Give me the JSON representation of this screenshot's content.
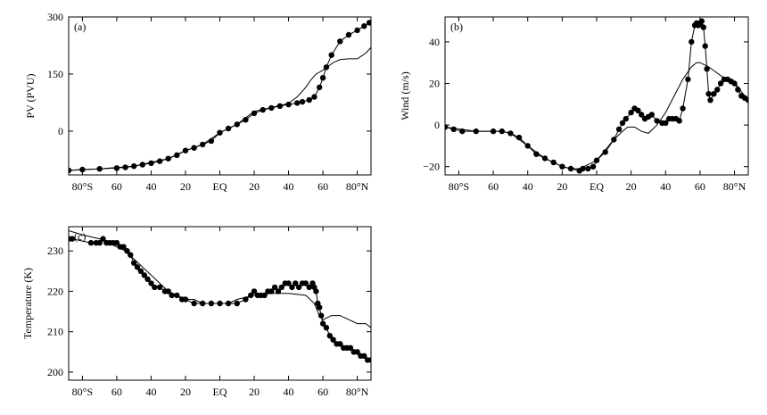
{
  "figure": {
    "background": "#ffffff",
    "ink": "#000000"
  },
  "chart_data": [
    {
      "type": "line",
      "panel_label": "(a)",
      "ylabel": "PV (PVU)",
      "xlabel": "",
      "x_ticks": [
        {
          "value": -80,
          "label": "80°S"
        },
        {
          "value": -60,
          "label": "60"
        },
        {
          "value": -40,
          "label": "40"
        },
        {
          "value": -20,
          "label": "20"
        },
        {
          "value": 0,
          "label": "EQ"
        },
        {
          "value": 20,
          "label": "20"
        },
        {
          "value": 40,
          "label": "40"
        },
        {
          "value": 60,
          "label": "60"
        },
        {
          "value": 80,
          "label": "80°N"
        }
      ],
      "y_ticks": [
        {
          "value": 0,
          "label": "0"
        },
        {
          "value": 150,
          "label": "150"
        },
        {
          "value": 300,
          "label": "300"
        }
      ],
      "xlim": [
        -88,
        88
      ],
      "ylim": [
        -115,
        300
      ],
      "series": [
        {
          "style": "dots",
          "x": [
            -88,
            -80,
            -70,
            -60,
            -55,
            -50,
            -45,
            -40,
            -35,
            -30,
            -25,
            -20,
            -15,
            -10,
            -5,
            0,
            5,
            10,
            15,
            20,
            25,
            30,
            35,
            40,
            45,
            48,
            52,
            55,
            58,
            60,
            62,
            65,
            70,
            75,
            80,
            84,
            87
          ],
          "y": [
            -103,
            -101,
            -99,
            -97,
            -95,
            -92,
            -88,
            -84,
            -79,
            -72,
            -63,
            -51,
            -44,
            -35,
            -26,
            -4,
            7,
            18,
            30,
            47,
            56,
            61,
            66,
            70,
            74,
            77,
            82,
            90,
            115,
            140,
            168,
            200,
            236,
            253,
            265,
            276,
            285
          ]
        },
        {
          "style": "line",
          "x": [
            -88,
            -70,
            -50,
            -30,
            -20,
            -10,
            0,
            10,
            20,
            30,
            40,
            45,
            50,
            53,
            56,
            60,
            63,
            66,
            70,
            75,
            80,
            85,
            88
          ],
          "y": [
            -103,
            -99,
            -92,
            -72,
            -51,
            -35,
            -4,
            18,
            52,
            62,
            73,
            90,
            115,
            135,
            150,
            160,
            170,
            180,
            188,
            190,
            190,
            205,
            220
          ]
        }
      ]
    },
    {
      "type": "line",
      "panel_label": "(b)",
      "ylabel": "Wind (m/s)",
      "xlabel": "",
      "x_ticks": [
        {
          "value": -80,
          "label": "80°S"
        },
        {
          "value": -60,
          "label": "60"
        },
        {
          "value": -40,
          "label": "40"
        },
        {
          "value": -20,
          "label": "20"
        },
        {
          "value": 0,
          "label": "EQ"
        },
        {
          "value": 20,
          "label": "20"
        },
        {
          "value": 40,
          "label": "40"
        },
        {
          "value": 60,
          "label": "60"
        },
        {
          "value": 80,
          "label": "80°N"
        }
      ],
      "y_ticks": [
        {
          "value": -20,
          "label": "−20"
        },
        {
          "value": 0,
          "label": "0"
        },
        {
          "value": 20,
          "label": "20"
        },
        {
          "value": 40,
          "label": "40"
        }
      ],
      "xlim": [
        -88,
        88
      ],
      "ylim": [
        -24,
        52
      ],
      "series": [
        {
          "style": "dots",
          "x": [
            -88,
            -83,
            -78,
            -70,
            -60,
            -55,
            -50,
            -45,
            -40,
            -35,
            -30,
            -25,
            -20,
            -15,
            -10,
            -8,
            -5,
            -2,
            0,
            5,
            10,
            13,
            15,
            17,
            20,
            22,
            24,
            26,
            28,
            30,
            32,
            35,
            38,
            40,
            42,
            44,
            46,
            48,
            50,
            53,
            55,
            57,
            58,
            59,
            60,
            61,
            62,
            63,
            64,
            65,
            66,
            68,
            70,
            72,
            74,
            76,
            78,
            80,
            82,
            84,
            86,
            88
          ],
          "y": [
            -1,
            -2,
            -3,
            -3,
            -3,
            -3,
            -4,
            -6,
            -10,
            -14,
            -16,
            -18,
            -20,
            -21,
            -22,
            -21,
            -21,
            -20,
            -17,
            -13,
            -7,
            -2,
            1,
            3,
            6,
            8,
            7,
            5,
            3,
            4,
            5,
            2,
            1,
            1,
            3,
            3,
            3,
            2,
            8,
            22,
            40,
            48,
            49,
            48,
            49,
            50,
            47,
            38,
            27,
            15,
            12,
            15,
            17,
            20,
            22,
            22,
            21,
            20,
            17,
            14,
            13,
            12
          ]
        },
        {
          "style": "line",
          "x": [
            -88,
            -70,
            -55,
            -50,
            -40,
            -30,
            -20,
            -15,
            -10,
            -5,
            0,
            5,
            10,
            15,
            18,
            22,
            26,
            30,
            35,
            40,
            45,
            50,
            55,
            58,
            60,
            65,
            70,
            75,
            80,
            84,
            88
          ],
          "y": [
            -1,
            -3,
            -3,
            -4,
            -10,
            -16,
            -20,
            -21,
            -21,
            -19,
            -17,
            -12,
            -7,
            -3,
            -1,
            -1,
            -3,
            -4,
            0,
            6,
            14,
            22,
            28,
            30,
            30,
            28,
            25,
            22,
            21,
            16,
            12
          ]
        }
      ]
    },
    {
      "type": "line",
      "panel_label": "(c)",
      "ylabel": "Temperature (K)",
      "xlabel": "",
      "x_ticks": [
        {
          "value": -80,
          "label": "80°S"
        },
        {
          "value": -60,
          "label": "60"
        },
        {
          "value": -40,
          "label": "40"
        },
        {
          "value": -20,
          "label": "20"
        },
        {
          "value": 0,
          "label": "EQ"
        },
        {
          "value": 20,
          "label": "20"
        },
        {
          "value": 40,
          "label": "40"
        },
        {
          "value": 60,
          "label": "60"
        },
        {
          "value": 80,
          "label": "80°N"
        }
      ],
      "y_ticks": [
        {
          "value": 200,
          "label": "200"
        },
        {
          "value": 210,
          "label": "210"
        },
        {
          "value": 220,
          "label": "220"
        },
        {
          "value": 230,
          "label": "230"
        }
      ],
      "xlim": [
        -88,
        88
      ],
      "ylim": [
        198,
        236
      ],
      "series": [
        {
          "style": "dots",
          "x": [
            -88,
            -86,
            -75,
            -72,
            -70,
            -68,
            -66,
            -64,
            -62,
            -60,
            -58,
            -56,
            -54,
            -52,
            -50,
            -48,
            -46,
            -44,
            -42,
            -40,
            -38,
            -35,
            -32,
            -30,
            -28,
            -25,
            -22,
            -20,
            -15,
            -10,
            -5,
            0,
            5,
            10,
            15,
            18,
            20,
            22,
            24,
            26,
            28,
            30,
            32,
            34,
            36,
            38,
            40,
            42,
            44,
            46,
            48,
            50,
            52,
            54,
            55,
            56,
            57,
            58,
            59,
            60,
            62,
            64,
            66,
            68,
            70,
            72,
            74,
            76,
            78,
            80,
            82,
            84,
            86,
            88
          ],
          "y": [
            233,
            233,
            232,
            232,
            232,
            233,
            232,
            232,
            232,
            232,
            231,
            231,
            230,
            229,
            227,
            226,
            225,
            224,
            223,
            222,
            221,
            221,
            220,
            220,
            219,
            219,
            218,
            218,
            217,
            217,
            217,
            217,
            217,
            217,
            218,
            219,
            220,
            219,
            219,
            219,
            220,
            220,
            221,
            220,
            221,
            222,
            222,
            221,
            222,
            221,
            222,
            222,
            221,
            222,
            221,
            220,
            217,
            216,
            214,
            212,
            211,
            209,
            208,
            207,
            207,
            206,
            206,
            206,
            205,
            205,
            204,
            204,
            203,
            203
          ]
        },
        {
          "style": "line",
          "x": [
            -88,
            -80,
            -70,
            -60,
            -55,
            -50,
            -45,
            -40,
            -35,
            -30,
            -25,
            -20,
            -15,
            -10,
            -5,
            0,
            5,
            10,
            20,
            30,
            40,
            50,
            55,
            58,
            60,
            65,
            70,
            75,
            80,
            85,
            88
          ],
          "y": [
            235,
            234,
            233,
            231,
            230,
            228,
            226,
            224,
            222,
            220,
            219,
            218,
            218,
            217,
            217,
            217,
            217,
            218,
            219,
            219.5,
            219.5,
            219,
            217,
            214,
            213,
            214,
            214,
            213,
            212,
            212,
            211
          ]
        }
      ]
    }
  ]
}
